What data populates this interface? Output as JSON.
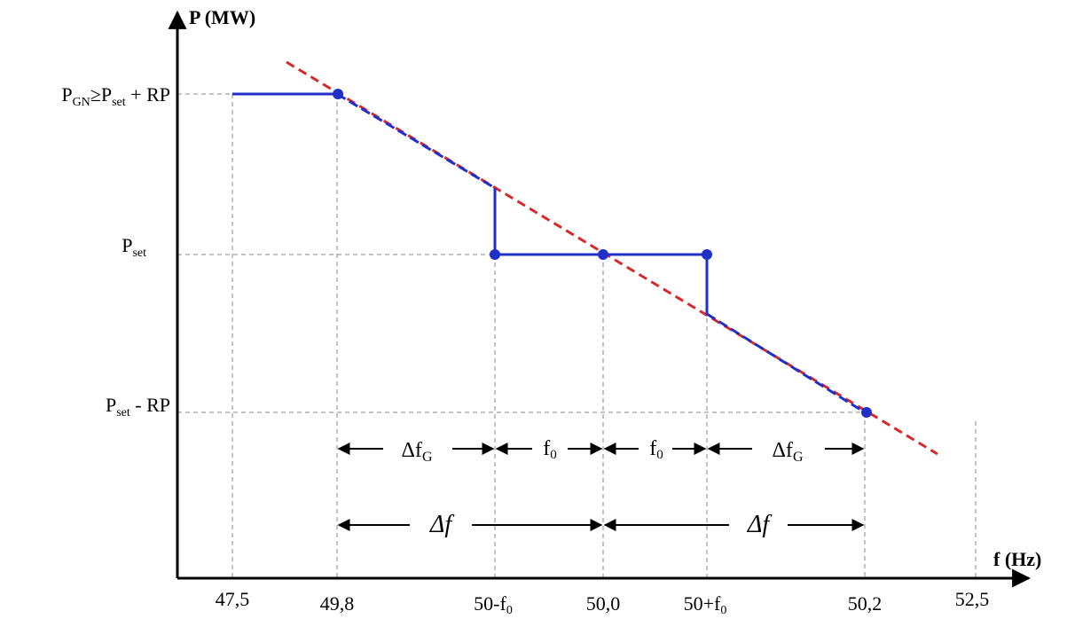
{
  "axes": {
    "y_label": "P (MW)",
    "x_label": "f (Hz)"
  },
  "y_labels": {
    "top": {
      "main": "P",
      "sub1": "GN",
      "rel": "≥P",
      "sub2": "set",
      "tail": " + RP"
    },
    "mid": {
      "main": "P",
      "sub": "set"
    },
    "bottom": {
      "main": "P",
      "sub": "set",
      "tail": " - RP"
    }
  },
  "x_ticks": {
    "t475": "47,5",
    "t498": "49,8",
    "t50mf0": {
      "main": "50-f",
      "sub": "0"
    },
    "t500": "50,0",
    "t50pf0": {
      "main": "50+f",
      "sub": "0"
    },
    "t502": "50,2",
    "t525": "52,5"
  },
  "intervals": {
    "dfG": {
      "main": "Δf",
      "sub": "G"
    },
    "f0": {
      "main": "f",
      "sub": "0"
    },
    "df": "Δf"
  },
  "colors": {
    "characteristic": "#1f2fc8",
    "droop_line": "#d42a2a",
    "grid": "#8a8a8a",
    "axis": "#000000"
  }
}
